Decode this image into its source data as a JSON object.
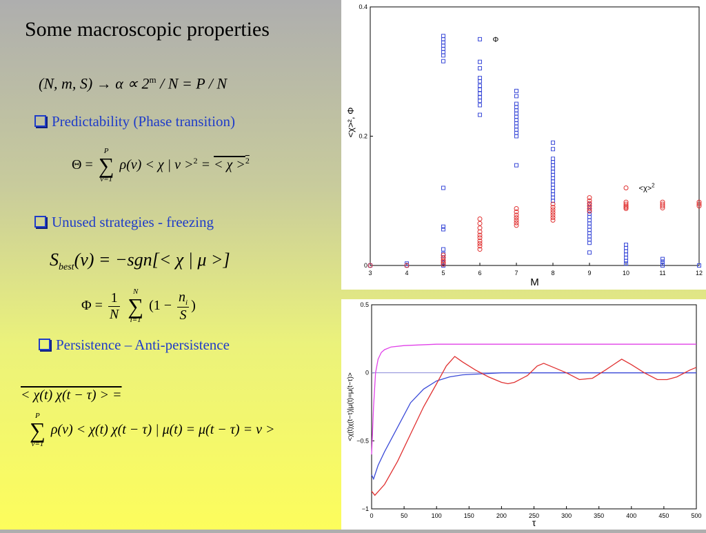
{
  "title": "Some macroscopic properties",
  "equations": {
    "alpha": "(N, m, S) → α ∝ 2",
    "alpha_exp": "m",
    "alpha_tail": " / N = P / N",
    "theta_lhs": "Θ =",
    "theta_sum_top": "P",
    "theta_sum_bottom": "ν=1",
    "theta_body": "ρ(ν) < χ | ν >",
    "theta_sq1": "2",
    "theta_eq": " = ",
    "theta_rhs": "< χ >",
    "theta_sq2": "2",
    "sbest_s": "S",
    "sbest_sub": "best",
    "sbest_rest": "(ν) = −sgn[< χ | μ >]",
    "phi_lhs": "Φ =",
    "phi_frac_num": "1",
    "phi_frac_den": "N",
    "phi_sum_top": "N",
    "phi_sum_bottom": "i=1",
    "phi_body_a": "(1 −",
    "phi_ni_num": "n",
    "phi_ni_sub": "i",
    "phi_ni_den": "S",
    "phi_body_b": ")",
    "corr_lhs": "< χ(t) χ(t − τ) > =",
    "corr_sum_top": "P",
    "corr_sum_bottom": "ν=1",
    "corr_body": "ρ(ν) < χ(t) χ(t − τ) | μ(t) = μ(t − τ) = ν >"
  },
  "bullets": {
    "predictability": "Predictability (Phase transition)",
    "unused": "Unused strategies - freezing",
    "persistence": "Persistence – Anti-persistence"
  },
  "colors": {
    "bullet_blue": "#1f3cc8",
    "series_blue": "#3a4ad8",
    "series_red": "#e03030",
    "series_magenta": "#e040e8",
    "ref_line": "#8a8ad8"
  },
  "chart_data": [
    {
      "type": "scatter",
      "xlabel": "M",
      "ylabel": "<χ>², Φ",
      "xlim": [
        3,
        12
      ],
      "ylim": [
        0,
        0.4
      ],
      "xticks": [
        "3",
        "4",
        "5",
        "6",
        "7",
        "8",
        "9",
        "10",
        "11",
        "12"
      ],
      "yticks": [
        "0",
        "0.2",
        "0.4"
      ],
      "grid": false,
      "annotations": [
        {
          "text": "Φ",
          "x": 6.35,
          "y": 0.35,
          "marker": "square"
        },
        {
          "text": "<χ>",
          "sup": "2",
          "x": 10.35,
          "y": 0.12,
          "marker": "circle"
        }
      ],
      "series": [
        {
          "marker": "square",
          "color": "#3a4ad8",
          "points": [
            [
              3,
              0.0
            ],
            [
              4,
              0.0
            ],
            [
              4,
              0.003
            ],
            [
              5,
              0.355
            ],
            [
              5,
              0.35
            ],
            [
              5,
              0.345
            ],
            [
              5,
              0.34
            ],
            [
              5,
              0.335
            ],
            [
              5,
              0.33
            ],
            [
              5,
              0.325
            ],
            [
              5,
              0.316
            ],
            [
              5,
              0.12
            ],
            [
              5,
              0.06
            ],
            [
              5,
              0.056
            ],
            [
              5,
              0.025
            ],
            [
              5,
              0.018
            ],
            [
              5,
              0.01
            ],
            [
              5,
              0.004
            ],
            [
              5,
              0.0
            ],
            [
              6,
              0.35
            ],
            [
              6,
              0.315
            ],
            [
              6,
              0.305
            ],
            [
              6,
              0.29
            ],
            [
              6,
              0.285
            ],
            [
              6,
              0.278
            ],
            [
              6,
              0.272
            ],
            [
              6,
              0.266
            ],
            [
              6,
              0.26
            ],
            [
              6,
              0.255
            ],
            [
              6,
              0.248
            ],
            [
              6,
              0.233
            ],
            [
              7,
              0.27
            ],
            [
              7,
              0.262
            ],
            [
              7,
              0.25
            ],
            [
              7,
              0.245
            ],
            [
              7,
              0.24
            ],
            [
              7,
              0.235
            ],
            [
              7,
              0.23
            ],
            [
              7,
              0.225
            ],
            [
              7,
              0.22
            ],
            [
              7,
              0.215
            ],
            [
              7,
              0.21
            ],
            [
              7,
              0.205
            ],
            [
              7,
              0.2
            ],
            [
              7,
              0.155
            ],
            [
              8,
              0.19
            ],
            [
              8,
              0.18
            ],
            [
              8,
              0.165
            ],
            [
              8,
              0.16
            ],
            [
              8,
              0.155
            ],
            [
              8,
              0.15
            ],
            [
              8,
              0.145
            ],
            [
              8,
              0.14
            ],
            [
              8,
              0.135
            ],
            [
              8,
              0.13
            ],
            [
              8,
              0.125
            ],
            [
              8,
              0.12
            ],
            [
              8,
              0.115
            ],
            [
              8,
              0.11
            ],
            [
              8,
              0.105
            ],
            [
              8,
              0.1
            ],
            [
              9,
              0.095
            ],
            [
              9,
              0.09
            ],
            [
              9,
              0.085
            ],
            [
              9,
              0.08
            ],
            [
              9,
              0.075
            ],
            [
              9,
              0.07
            ],
            [
              9,
              0.065
            ],
            [
              9,
              0.06
            ],
            [
              9,
              0.055
            ],
            [
              9,
              0.05
            ],
            [
              9,
              0.045
            ],
            [
              9,
              0.04
            ],
            [
              9,
              0.035
            ],
            [
              9,
              0.02
            ],
            [
              10,
              0.032
            ],
            [
              10,
              0.027
            ],
            [
              10,
              0.022
            ],
            [
              10,
              0.017
            ],
            [
              10,
              0.012
            ],
            [
              10,
              0.007
            ],
            [
              10,
              0.003
            ],
            [
              11,
              0.01
            ],
            [
              11,
              0.006
            ],
            [
              11,
              0.003
            ],
            [
              11,
              0.0
            ],
            [
              12,
              0.0
            ]
          ]
        },
        {
          "marker": "circle",
          "color": "#e03030",
          "points": [
            [
              3,
              0.0
            ],
            [
              4,
              0.0
            ],
            [
              5,
              0.016
            ],
            [
              5,
              0.012
            ],
            [
              5,
              0.008
            ],
            [
              5,
              0.005
            ],
            [
              5,
              0.002
            ],
            [
              6,
              0.072
            ],
            [
              6,
              0.065
            ],
            [
              6,
              0.058
            ],
            [
              6,
              0.052
            ],
            [
              6,
              0.047
            ],
            [
              6,
              0.043
            ],
            [
              6,
              0.038
            ],
            [
              6,
              0.034
            ],
            [
              6,
              0.03
            ],
            [
              6,
              0.025
            ],
            [
              7,
              0.088
            ],
            [
              7,
              0.083
            ],
            [
              7,
              0.078
            ],
            [
              7,
              0.074
            ],
            [
              7,
              0.07
            ],
            [
              7,
              0.066
            ],
            [
              7,
              0.062
            ],
            [
              8,
              0.095
            ],
            [
              8,
              0.09
            ],
            [
              8,
              0.086
            ],
            [
              8,
              0.082
            ],
            [
              8,
              0.078
            ],
            [
              8,
              0.074
            ],
            [
              8,
              0.07
            ],
            [
              9,
              0.105
            ],
            [
              9,
              0.1
            ],
            [
              9,
              0.096
            ],
            [
              9,
              0.092
            ],
            [
              9,
              0.088
            ],
            [
              9,
              0.084
            ],
            [
              10,
              0.12
            ],
            [
              10,
              0.098
            ],
            [
              10,
              0.095
            ],
            [
              10,
              0.092
            ],
            [
              10,
              0.09
            ],
            [
              10,
              0.088
            ],
            [
              11,
              0.098
            ],
            [
              11,
              0.095
            ],
            [
              11,
              0.092
            ],
            [
              11,
              0.089
            ],
            [
              12,
              0.098
            ],
            [
              12,
              0.095
            ],
            [
              12,
              0.092
            ]
          ]
        }
      ]
    },
    {
      "type": "line",
      "xlabel": "τ",
      "ylabel": "<χ(t)χ(t−τ)|μ(t)=μ(t−τ)>",
      "xlim": [
        0,
        500
      ],
      "ylim": [
        -1,
        0.5
      ],
      "xticks": [
        "0",
        "50",
        "100",
        "150",
        "200",
        "250",
        "300",
        "350",
        "400",
        "450",
        "500"
      ],
      "yticks": [
        "−1",
        "−0.5",
        "0",
        "0.5"
      ],
      "grid": false,
      "reference_line_y": 0,
      "series": [
        {
          "color": "#e040e8",
          "points": [
            [
              0,
              -0.6
            ],
            [
              3,
              -0.25
            ],
            [
              6,
              0.0
            ],
            [
              10,
              0.1
            ],
            [
              15,
              0.15
            ],
            [
              20,
              0.17
            ],
            [
              30,
              0.19
            ],
            [
              50,
              0.2
            ],
            [
              100,
              0.21
            ],
            [
              200,
              0.21
            ],
            [
              300,
              0.21
            ],
            [
              400,
              0.21
            ],
            [
              500,
              0.21
            ]
          ]
        },
        {
          "color": "#3a4ad8",
          "points": [
            [
              0,
              -0.75
            ],
            [
              3,
              -0.78
            ],
            [
              10,
              -0.68
            ],
            [
              20,
              -0.58
            ],
            [
              40,
              -0.4
            ],
            [
              60,
              -0.22
            ],
            [
              80,
              -0.12
            ],
            [
              100,
              -0.06
            ],
            [
              120,
              -0.03
            ],
            [
              140,
              -0.015
            ],
            [
              160,
              -0.01
            ],
            [
              200,
              0.0
            ],
            [
              300,
              0.0
            ],
            [
              400,
              0.0
            ],
            [
              500,
              0.0
            ]
          ]
        },
        {
          "color": "#e03030",
          "points": [
            [
              0,
              -0.87
            ],
            [
              5,
              -0.9
            ],
            [
              20,
              -0.82
            ],
            [
              40,
              -0.65
            ],
            [
              60,
              -0.45
            ],
            [
              80,
              -0.25
            ],
            [
              100,
              -0.08
            ],
            [
              115,
              0.05
            ],
            [
              128,
              0.12
            ],
            [
              140,
              0.08
            ],
            [
              160,
              0.02
            ],
            [
              180,
              -0.03
            ],
            [
              200,
              -0.07
            ],
            [
              210,
              -0.08
            ],
            [
              220,
              -0.07
            ],
            [
              240,
              -0.02
            ],
            [
              255,
              0.05
            ],
            [
              265,
              0.07
            ],
            [
              280,
              0.04
            ],
            [
              300,
              0.0
            ],
            [
              320,
              -0.05
            ],
            [
              340,
              -0.04
            ],
            [
              360,
              0.02
            ],
            [
              385,
              0.1
            ],
            [
              400,
              0.06
            ],
            [
              420,
              0.0
            ],
            [
              440,
              -0.05
            ],
            [
              455,
              -0.05
            ],
            [
              470,
              -0.03
            ],
            [
              490,
              0.02
            ],
            [
              500,
              0.04
            ]
          ]
        }
      ]
    }
  ]
}
